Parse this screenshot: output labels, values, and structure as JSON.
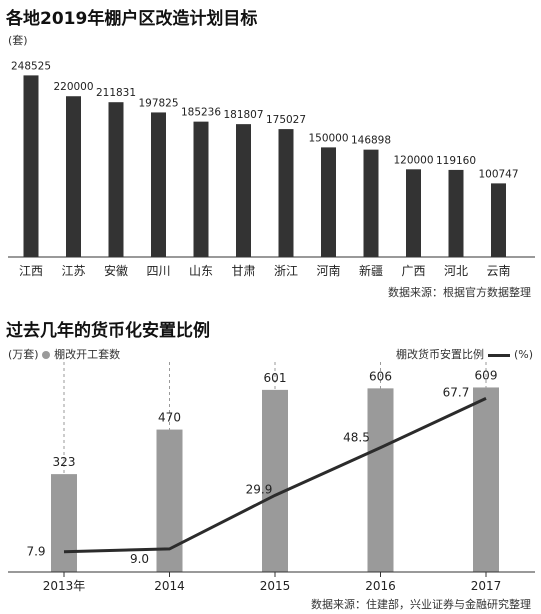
{
  "chart_data": [
    {
      "type": "bar",
      "title": "各地2019年棚户区改造计划目标",
      "ylabel": "(套)",
      "categories": [
        "江西",
        "江苏",
        "安徽",
        "四川",
        "山东",
        "甘肃",
        "浙江",
        "河南",
        "新疆",
        "广西",
        "河北",
        "云南"
      ],
      "values": [
        248525,
        220000,
        211831,
        197825,
        185236,
        181807,
        175027,
        150000,
        146898,
        120000,
        119160,
        100747
      ],
      "ylim": [
        0,
        260000
      ],
      "grid": false,
      "bar_color": "#333333",
      "source": "数据来源：根据官方数据整理"
    },
    {
      "type": "bar+line",
      "title": "过去几年的货币化安置比例",
      "categories": [
        "2013年",
        "2014",
        "2015",
        "2016",
        "2017"
      ],
      "series": [
        {
          "name": "棚改开工套数",
          "unit": "(万套)",
          "type": "bar",
          "values": [
            323,
            470,
            601,
            606,
            609
          ],
          "color": "#9a9a9a"
        },
        {
          "name": "棚改货币安置比例",
          "unit": "(%)",
          "type": "line",
          "values": [
            7.9,
            9.0,
            29.9,
            48.5,
            67.7
          ],
          "color": "#2b2b2b"
        }
      ],
      "bar_ylim": [
        0,
        660
      ],
      "line_ylim": [
        0,
        78
      ],
      "grid": "vertical dashed",
      "source": "数据来源：住建部，兴业证券与金融研究整理"
    }
  ]
}
